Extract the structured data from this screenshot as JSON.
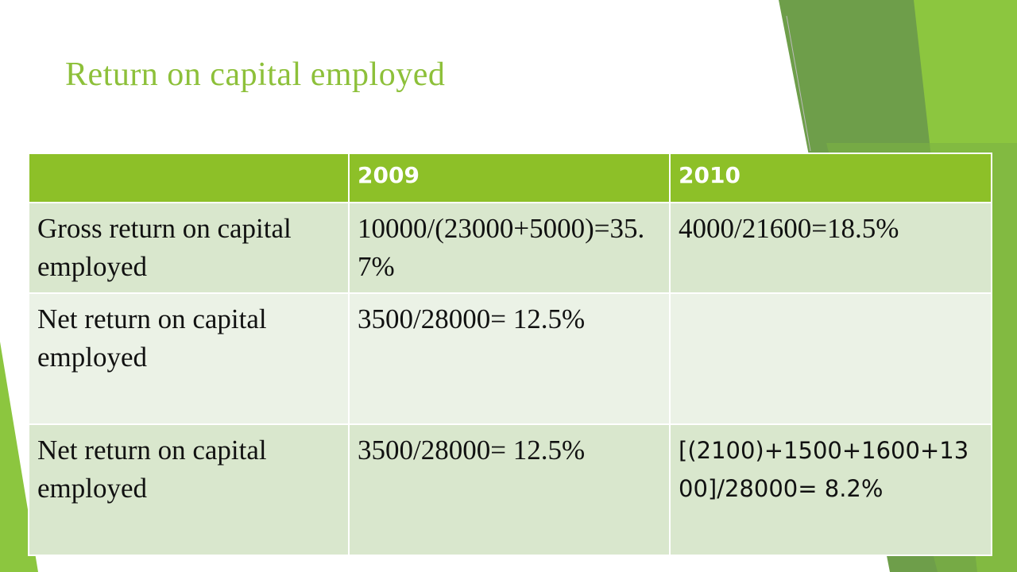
{
  "header": {
    "title": "Return on capital employed"
  },
  "table": {
    "columns": [
      "2009",
      "2010"
    ],
    "rows": [
      [
        "Gross return on capital employed",
        "10000/(23000+5000)=35.7%",
        "4000/21600=18.5%"
      ],
      [
        "Net return on capital employed",
        "3500/28000= 12.5%"
      ],
      [
        "Net return on capital employed",
        "3500/28000= 12.5%",
        "[(2100)+1500+1600+1300]/28000= 8.2%"
      ]
    ]
  }
}
